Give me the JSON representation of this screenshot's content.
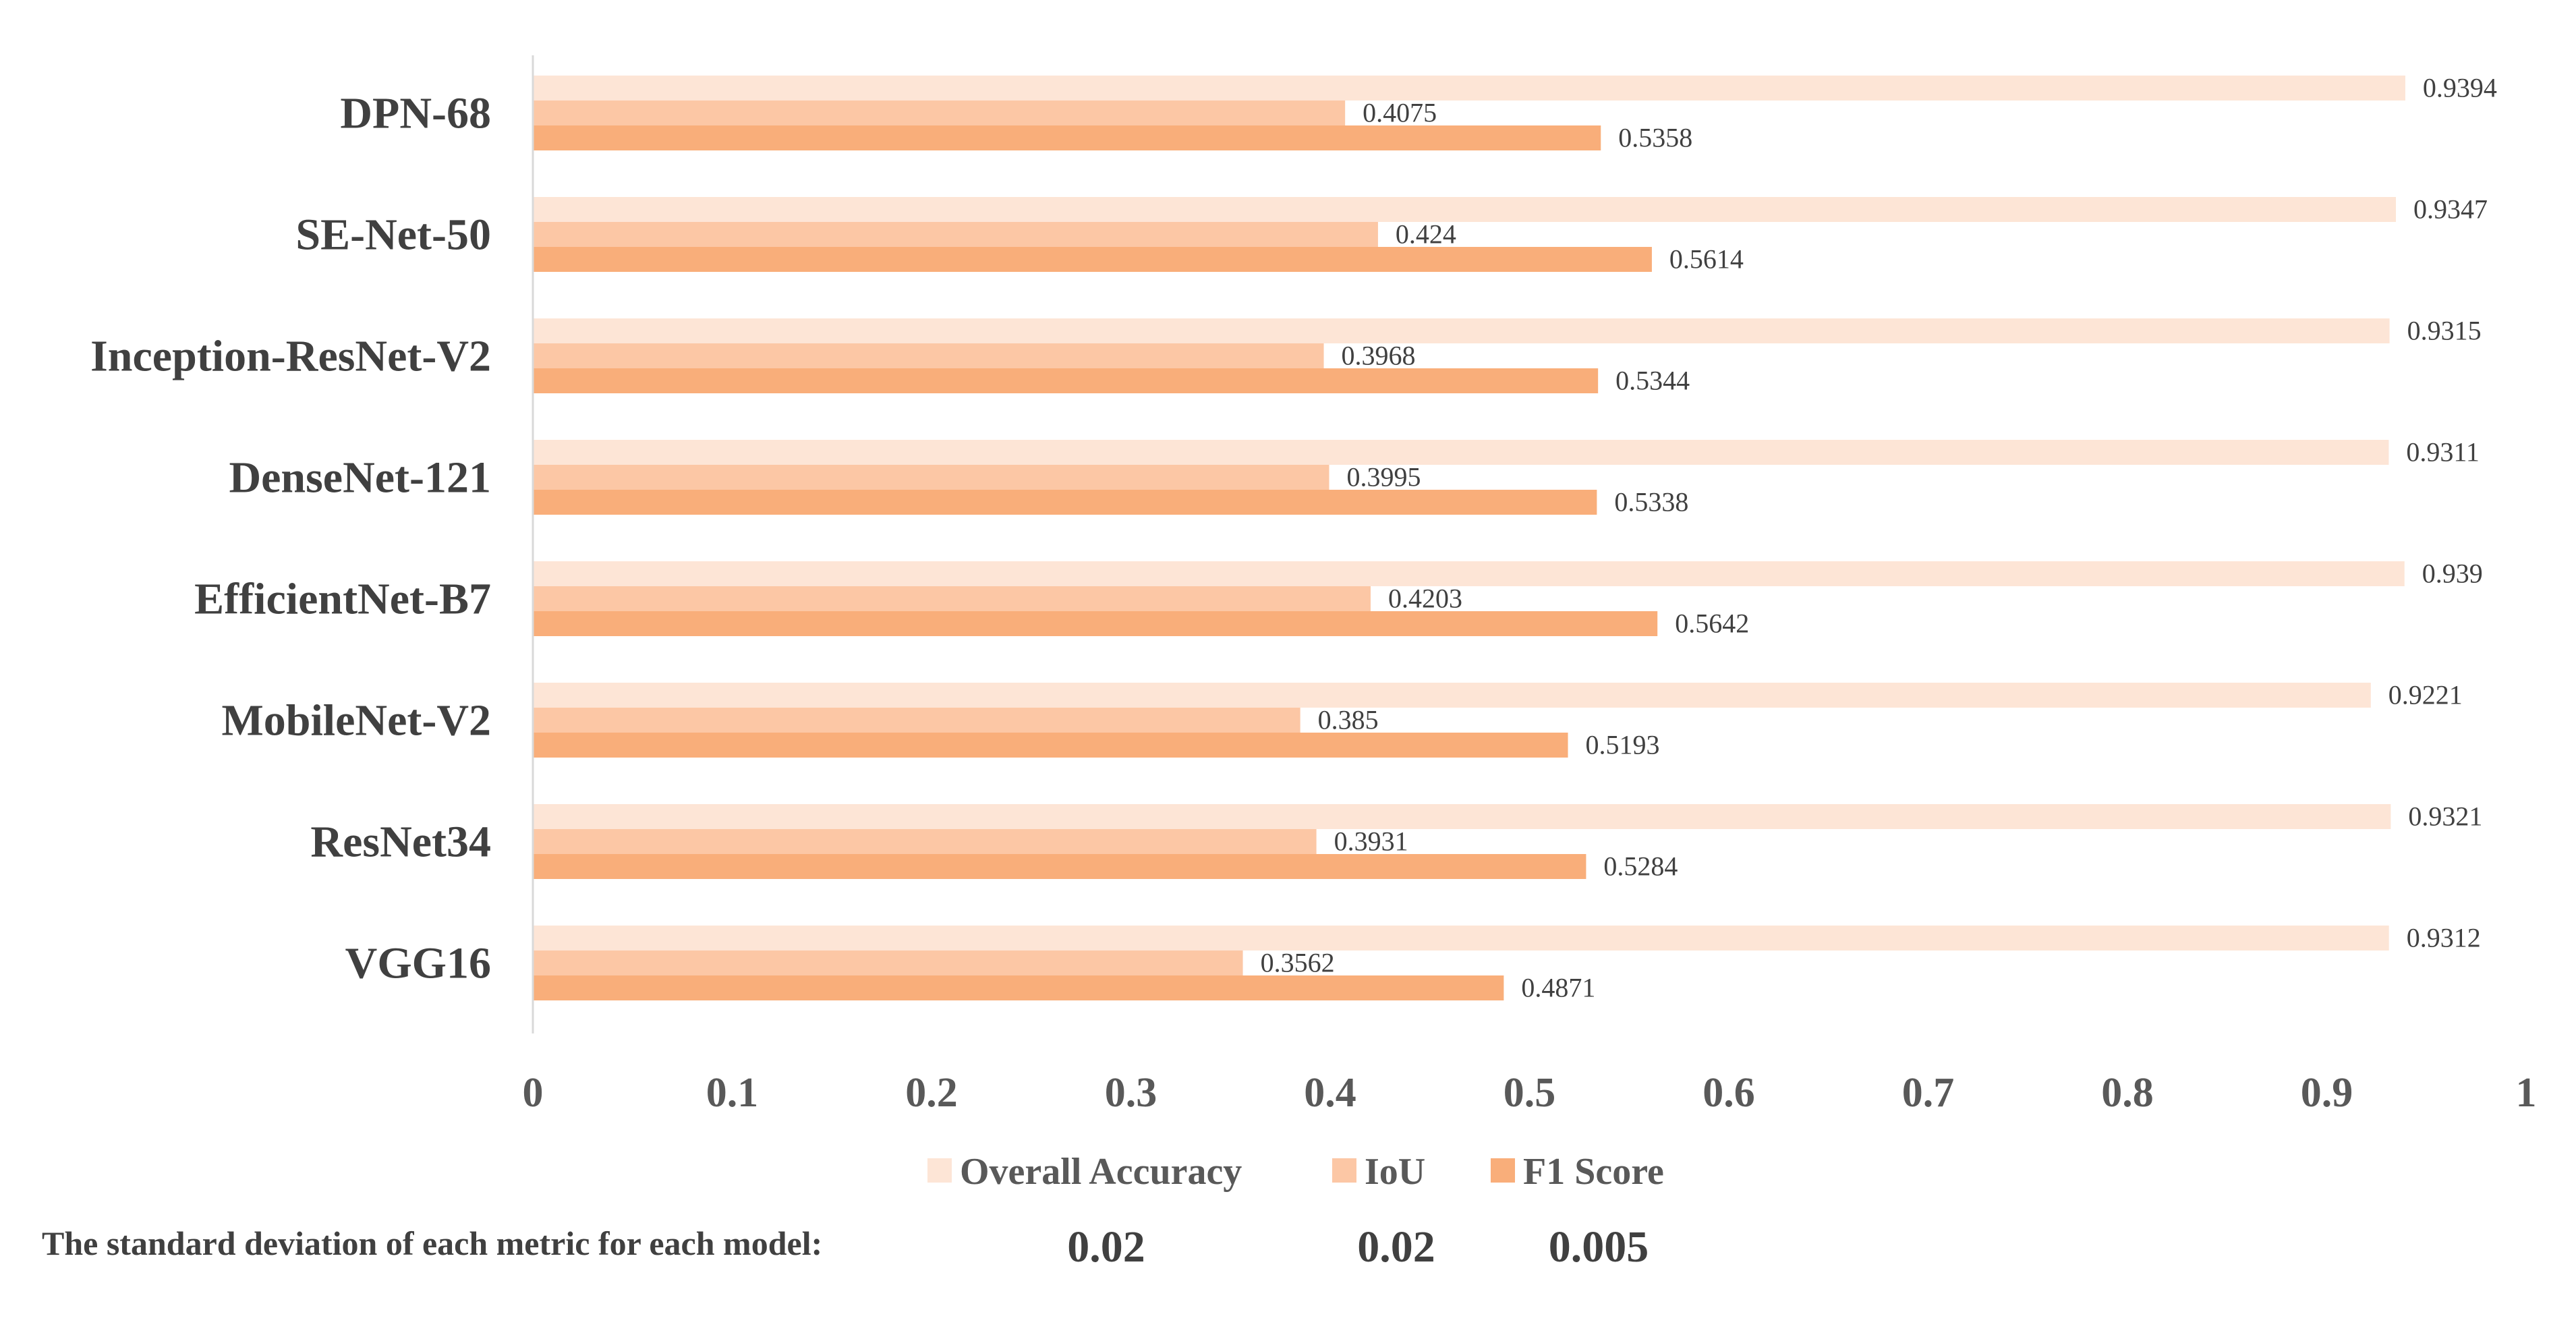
{
  "chart_data": {
    "type": "bar",
    "orientation": "horizontal",
    "title": "",
    "xlabel": "",
    "ylabel": "",
    "xlim": [
      0,
      1
    ],
    "x_ticks": [
      "0",
      "0.1",
      "0.2",
      "0.3",
      "0.4",
      "0.5",
      "0.6",
      "0.7",
      "0.8",
      "0.9",
      "1"
    ],
    "categories": [
      "DPN-68",
      "SE-Net-50",
      "Inception-ResNet-V2",
      "DenseNet-121",
      "EfficientNet-B7",
      "MobileNet-V2",
      "ResNet34",
      "VGG16"
    ],
    "series": [
      {
        "name": "Overall Accuracy",
        "color": "#FDE5D6",
        "values": [
          0.9394,
          0.9347,
          0.9315,
          0.9311,
          0.939,
          0.9221,
          0.9321,
          0.9312
        ],
        "labels": [
          "0.9394",
          "0.9347",
          "0.9315",
          "0.9311",
          "0.939",
          "0.9221",
          "0.9321",
          "0.9312"
        ]
      },
      {
        "name": "IoU",
        "color": "#FCC7A5",
        "values": [
          0.4075,
          0.424,
          0.3968,
          0.3995,
          0.4203,
          0.385,
          0.3931,
          0.3562
        ],
        "labels": [
          "0.4075",
          "0.424",
          "0.3968",
          "0.3995",
          "0.4203",
          "0.385",
          "0.3931",
          "0.3562"
        ]
      },
      {
        "name": "F1 Score",
        "color": "#F9AE7A",
        "values": [
          0.5358,
          0.5614,
          0.5344,
          0.5338,
          0.5642,
          0.5193,
          0.5284,
          0.4871
        ],
        "labels": [
          "0.5358",
          "0.5614",
          "0.5344",
          "0.5338",
          "0.5642",
          "0.5193",
          "0.5284",
          "0.4871"
        ]
      }
    ],
    "legend_position": "bottom",
    "grid": false,
    "axis_color": "#D9D9D9",
    "annotation": {
      "text": "The standard deviation of each metric for each model:",
      "values": [
        "0.02",
        "0.02",
        "0.005"
      ]
    }
  }
}
